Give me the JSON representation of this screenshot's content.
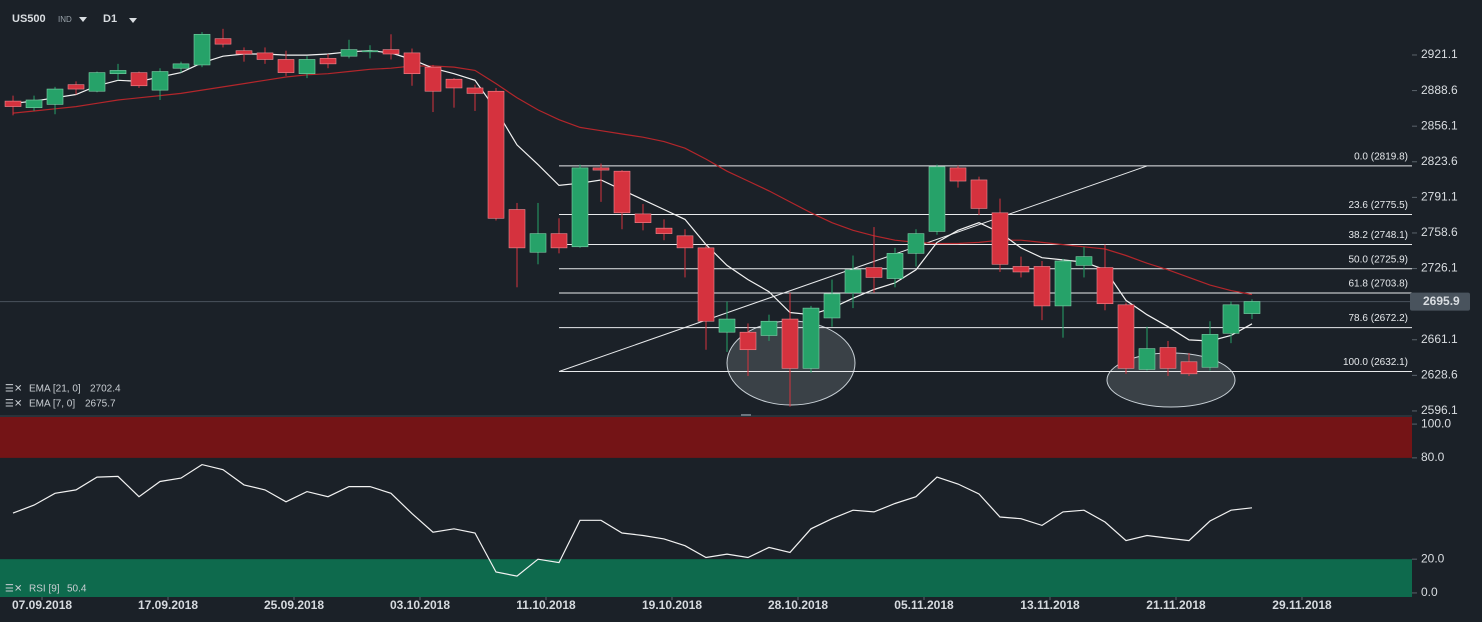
{
  "chart_data": [
    {
      "type": "candlestick",
      "symbol": "US500",
      "market": "IND",
      "timeframe": "D1",
      "xlim": [
        -0.62,
        66.62
      ],
      "xticks": [
        {
          "value": 1,
          "label": "07.09.2018"
        },
        {
          "value": 7,
          "label": "17.09.2018"
        },
        {
          "value": 13,
          "label": "25.09.2018"
        },
        {
          "value": 19,
          "label": "03.10.2018"
        },
        {
          "value": 25,
          "label": "11.10.2018"
        },
        {
          "value": 31,
          "label": "19.10.2018"
        },
        {
          "value": 37,
          "label": "28.10.2018"
        },
        {
          "value": 43,
          "label": "05.11.2018"
        },
        {
          "value": 49,
          "label": "13.11.2018"
        },
        {
          "value": 55,
          "label": "21.11.2018"
        },
        {
          "value": 61,
          "label": "29.11.2018"
        }
      ],
      "ylim": [
        2592.4,
        2971.3
      ],
      "yticks": [
        2596.1,
        2628.6,
        2661.1,
        2726.1,
        2758.6,
        2791.1,
        2823.6,
        2856.1,
        2888.6,
        2921.1
      ],
      "up_color": "#26a269",
      "down_color": "#d5323e",
      "open": [
        2879,
        2873,
        2876,
        2894,
        2888,
        2904,
        2905,
        2889,
        2909,
        2912,
        2936,
        2925,
        2923,
        2917,
        2904,
        2918,
        2920,
        2924,
        2926,
        2923,
        2910,
        2899,
        2891,
        2888,
        2780,
        2741,
        2758,
        2746,
        2818,
        2815,
        2776,
        2763,
        2756,
        2745,
        2668,
        2668,
        2665,
        2680,
        2635,
        2681,
        2704,
        2727,
        2717,
        2740,
        2760,
        2818,
        2807,
        2777,
        2728,
        2728,
        2692,
        2729,
        2727,
        2693,
        2634,
        2654,
        2641,
        2636,
        2667,
        2685
      ],
      "close": [
        2874,
        2880,
        2890,
        2890,
        2905,
        2907,
        2893,
        2906,
        2913,
        2940,
        2931,
        2922,
        2917,
        2905,
        2917,
        2913,
        2926,
        2925,
        2922,
        2904,
        2888,
        2891,
        2886,
        2772,
        2745,
        2758,
        2745,
        2818,
        2816,
        2777,
        2768,
        2758,
        2745,
        2678,
        2680,
        2652,
        2678,
        2635,
        2690,
        2703,
        2725,
        2718,
        2740,
        2758,
        2819,
        2806,
        2781,
        2730,
        2723,
        2692,
        2733,
        2737,
        2694,
        2635,
        2653,
        2635,
        2630,
        2666,
        2693,
        2696
      ],
      "high": [
        2884,
        2884,
        2892,
        2897,
        2906,
        2913,
        2906,
        2909,
        2915,
        2942,
        2945,
        2928,
        2928,
        2925,
        2920,
        2922,
        2935,
        2930,
        2940,
        2927,
        2912,
        2900,
        2894,
        2891,
        2786,
        2786,
        2772,
        2821,
        2822,
        2816,
        2785,
        2771,
        2762,
        2747,
        2696,
        2676,
        2684,
        2704,
        2692,
        2716,
        2738,
        2764,
        2745,
        2762,
        2821,
        2820,
        2810,
        2790,
        2737,
        2733,
        2735,
        2746,
        2748,
        2695,
        2673,
        2660,
        2649,
        2678,
        2696,
        2698
      ],
      "low": [
        2866,
        2870,
        2867,
        2885,
        2887,
        2898,
        2891,
        2880,
        2905,
        2910,
        2928,
        2915,
        2913,
        2902,
        2900,
        2909,
        2918,
        2918,
        2917,
        2893,
        2869,
        2873,
        2870,
        2770,
        2709,
        2730,
        2740,
        2745,
        2787,
        2762,
        2761,
        2752,
        2718,
        2652,
        2650,
        2628,
        2660,
        2600,
        2631,
        2673,
        2690,
        2704,
        2709,
        2728,
        2757,
        2800,
        2775,
        2723,
        2718,
        2679,
        2663,
        2718,
        2688,
        2630,
        2633,
        2628,
        2628,
        2633,
        2658,
        2680
      ],
      "series": [
        {
          "name": "EMA [21, 0]",
          "color": "#b3262b",
          "values": [
            2868,
            2870,
            2872,
            2874,
            2877,
            2880,
            2882,
            2884,
            2886,
            2889,
            2892,
            2895,
            2898,
            2901,
            2903,
            2904,
            2906,
            2908,
            2909,
            2911,
            2911,
            2910,
            2907,
            2895,
            2882,
            2871,
            2862,
            2855,
            2852,
            2849,
            2846,
            2842,
            2836,
            2826,
            2815,
            2806,
            2797,
            2787,
            2777,
            2768,
            2761,
            2756,
            2752,
            2750,
            2749,
            2749,
            2750,
            2752,
            2752,
            2750,
            2748,
            2746,
            2744,
            2738,
            2731,
            2725,
            2718,
            2711,
            2706,
            2702.4
          ]
        },
        {
          "name": "EMA [7, 0]",
          "color": "#f2f2f2",
          "values": [
            2877,
            2879,
            2882,
            2885,
            2893,
            2898,
            2897,
            2901,
            2905,
            2914,
            2920,
            2922,
            2922,
            2921,
            2921,
            2922,
            2924,
            2925,
            2923,
            2917,
            2909,
            2904,
            2898,
            2871,
            2839,
            2821,
            2802,
            2804,
            2807,
            2798,
            2789,
            2780,
            2771,
            2748,
            2729,
            2716,
            2705,
            2686,
            2684,
            2690,
            2699,
            2707,
            2713,
            2725,
            2750,
            2761,
            2768,
            2759,
            2745,
            2736,
            2734,
            2732,
            2725,
            2697,
            2684,
            2673,
            2661,
            2660,
            2665,
            2675.7
          ]
        }
      ],
      "last_price": 2695.9,
      "fib_levels": [
        {
          "value": 2819.8,
          "label": "0.0 (2819.8)"
        },
        {
          "value": 2775.5,
          "label": "23.6 (2775.5)"
        },
        {
          "value": 2748.1,
          "label": "38.2 (2748.1)"
        },
        {
          "value": 2725.9,
          "label": "50.0 (2725.9)"
        },
        {
          "value": 2703.8,
          "label": "61.8 (2703.8)"
        },
        {
          "value": 2672.2,
          "label": "78.6 (2672.2)"
        },
        {
          "value": 2632.1,
          "label": "100.0 (2632.1)"
        }
      ],
      "trendline": {
        "x": [
          26,
          54
        ],
        "y": [
          2632.1,
          2819.8
        ]
      }
    },
    {
      "type": "line",
      "ylim": [
        -2.4,
        104.2
      ],
      "yticks": [
        {
          "value": 0,
          "label": "0.0"
        },
        {
          "value": 20,
          "label": "20.0"
        },
        {
          "value": 80,
          "label": "80.0"
        },
        {
          "value": 100,
          "label": "100.0"
        }
      ],
      "upper_band_color": "#741416",
      "lower_band_color": "#0e6a4d",
      "series": [
        {
          "name": "RSI [9]",
          "color": "#f2f2f2",
          "values": [
            47.3,
            52,
            59,
            61,
            68.6,
            69,
            57,
            66,
            68,
            76,
            73,
            64,
            61,
            54,
            60,
            57,
            63,
            63,
            59,
            47,
            36,
            38,
            35.5,
            12.4,
            10,
            20,
            18,
            43,
            43,
            35.5,
            34,
            32,
            28,
            21,
            23,
            21,
            27,
            24,
            38,
            44,
            49,
            48,
            53,
            57,
            68.6,
            64.5,
            58.6,
            45,
            44,
            40,
            48,
            49,
            42,
            31,
            34,
            32.5,
            31,
            42.6,
            49,
            50.4
          ]
        }
      ]
    }
  ]
}
